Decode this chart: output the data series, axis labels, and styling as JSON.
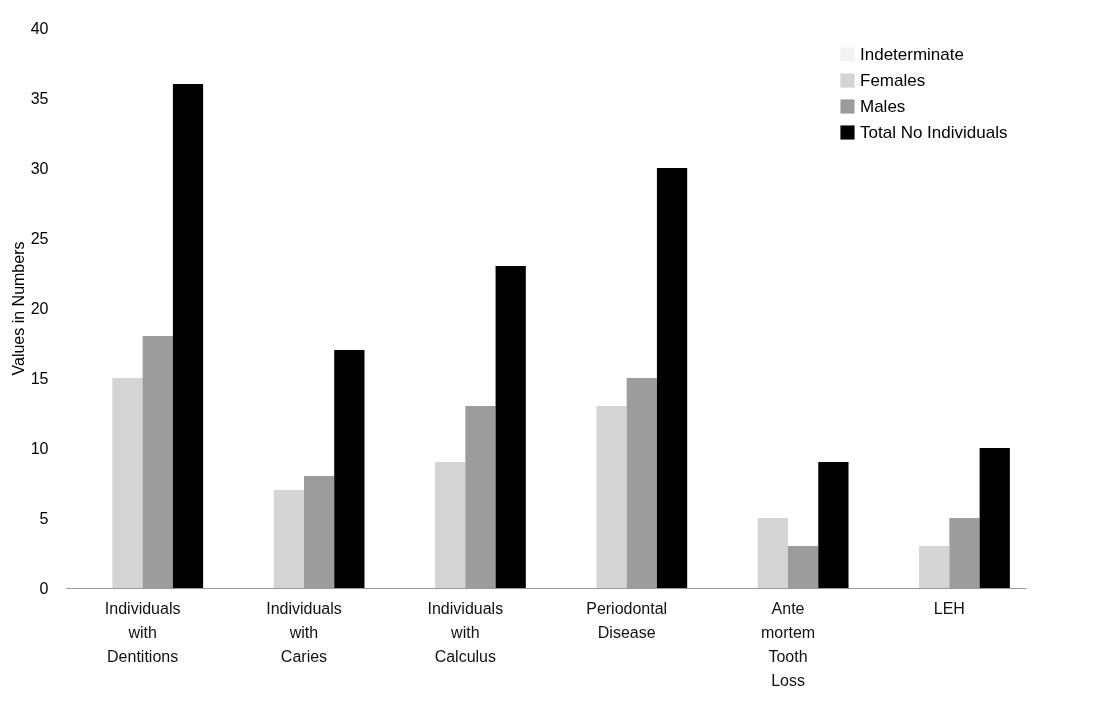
{
  "chart_data": {
    "type": "bar",
    "ylabel": "Values in Numbers",
    "categories": [
      "Individuals with Dentitions",
      "Individuals with Caries",
      "Individuals with Calculus",
      "Periodontal Disease",
      "Ante mortem Tooth Loss",
      "LEH"
    ],
    "series": [
      {
        "name": "Indeterminate",
        "color": "#f2f2f2",
        "values": [
          null,
          null,
          null,
          null,
          null,
          null
        ]
      },
      {
        "name": "Females",
        "color": "#d4d4d4",
        "values": [
          15,
          7,
          9,
          13,
          5,
          3
        ]
      },
      {
        "name": "Males",
        "color": "#9c9c9c",
        "values": [
          18,
          8,
          13,
          15,
          3,
          5
        ]
      },
      {
        "name": "Total No Individuals",
        "color": "#000000",
        "values": [
          36,
          17,
          23,
          30,
          9,
          10
        ]
      }
    ],
    "ylim": [
      0,
      40
    ],
    "yticks": [
      0,
      5,
      10,
      15,
      20,
      25,
      30,
      35,
      40
    ],
    "grid": false,
    "legend": "top right"
  }
}
